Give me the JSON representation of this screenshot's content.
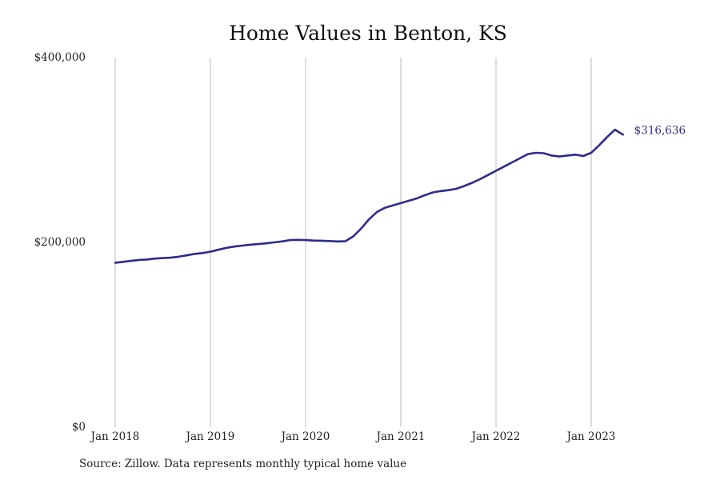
{
  "chart_data": {
    "type": "line",
    "title": "Home Values in Benton, KS",
    "xlabel": "",
    "ylabel": "",
    "ylim": [
      0,
      400000
    ],
    "y_ticks": [
      {
        "value": 0,
        "label": "$0"
      },
      {
        "value": 200000,
        "label": "$200,000"
      },
      {
        "value": 400000,
        "label": "$400,000"
      }
    ],
    "x_ticks": [
      {
        "date": "2018-01",
        "label": "Jan 2018"
      },
      {
        "date": "2019-01",
        "label": "Jan 2019"
      },
      {
        "date": "2020-01",
        "label": "Jan 2020"
      },
      {
        "date": "2021-01",
        "label": "Jan 2021"
      },
      {
        "date": "2022-01",
        "label": "Jan 2022"
      },
      {
        "date": "2023-01",
        "label": "Jan 2023"
      }
    ],
    "grid": "vertical",
    "line_color": "#2e2b8c",
    "series": [
      {
        "x": [
          "2018-01",
          "2018-02",
          "2018-03",
          "2018-04",
          "2018-05",
          "2018-06",
          "2018-07",
          "2018-08",
          "2018-09",
          "2018-10",
          "2018-11",
          "2018-12",
          "2019-01",
          "2019-02",
          "2019-03",
          "2019-04",
          "2019-05",
          "2019-06",
          "2019-07",
          "2019-08",
          "2019-09",
          "2019-10",
          "2019-11",
          "2019-12",
          "2020-01",
          "2020-02",
          "2020-03",
          "2020-04",
          "2020-05",
          "2020-06",
          "2020-07",
          "2020-08",
          "2020-09",
          "2020-10",
          "2020-11",
          "2020-12",
          "2021-01",
          "2021-02",
          "2021-03",
          "2021-04",
          "2021-05",
          "2021-06",
          "2021-07",
          "2021-08",
          "2021-09",
          "2021-10",
          "2021-11",
          "2021-12",
          "2022-01",
          "2022-02",
          "2022-03",
          "2022-04",
          "2022-05",
          "2022-06",
          "2022-07",
          "2022-08",
          "2022-09",
          "2022-10",
          "2022-11",
          "2022-12",
          "2023-01",
          "2023-02",
          "2023-03",
          "2023-04",
          "2023-05"
        ],
        "values": [
          178000,
          179000,
          180000,
          181000,
          181500,
          182500,
          183000,
          183500,
          184500,
          186000,
          187500,
          188500,
          190000,
          192000,
          194000,
          195500,
          196500,
          197500,
          198200,
          199000,
          200000,
          201000,
          202500,
          202800,
          202500,
          202000,
          201800,
          201500,
          201000,
          201200,
          206500,
          215000,
          225000,
          233000,
          237500,
          240000,
          242500,
          245000,
          247500,
          251000,
          254000,
          255500,
          256500,
          258000,
          261000,
          264500,
          268500,
          273000,
          277500,
          282000,
          286500,
          291000,
          295500,
          297000,
          296500,
          294000,
          293000,
          294000,
          295000,
          293500,
          297000,
          305000,
          314000,
          322000,
          316636
        ]
      }
    ],
    "end_label": "$316,636",
    "source": "Source: Zillow. Data represents monthly typical home value"
  }
}
